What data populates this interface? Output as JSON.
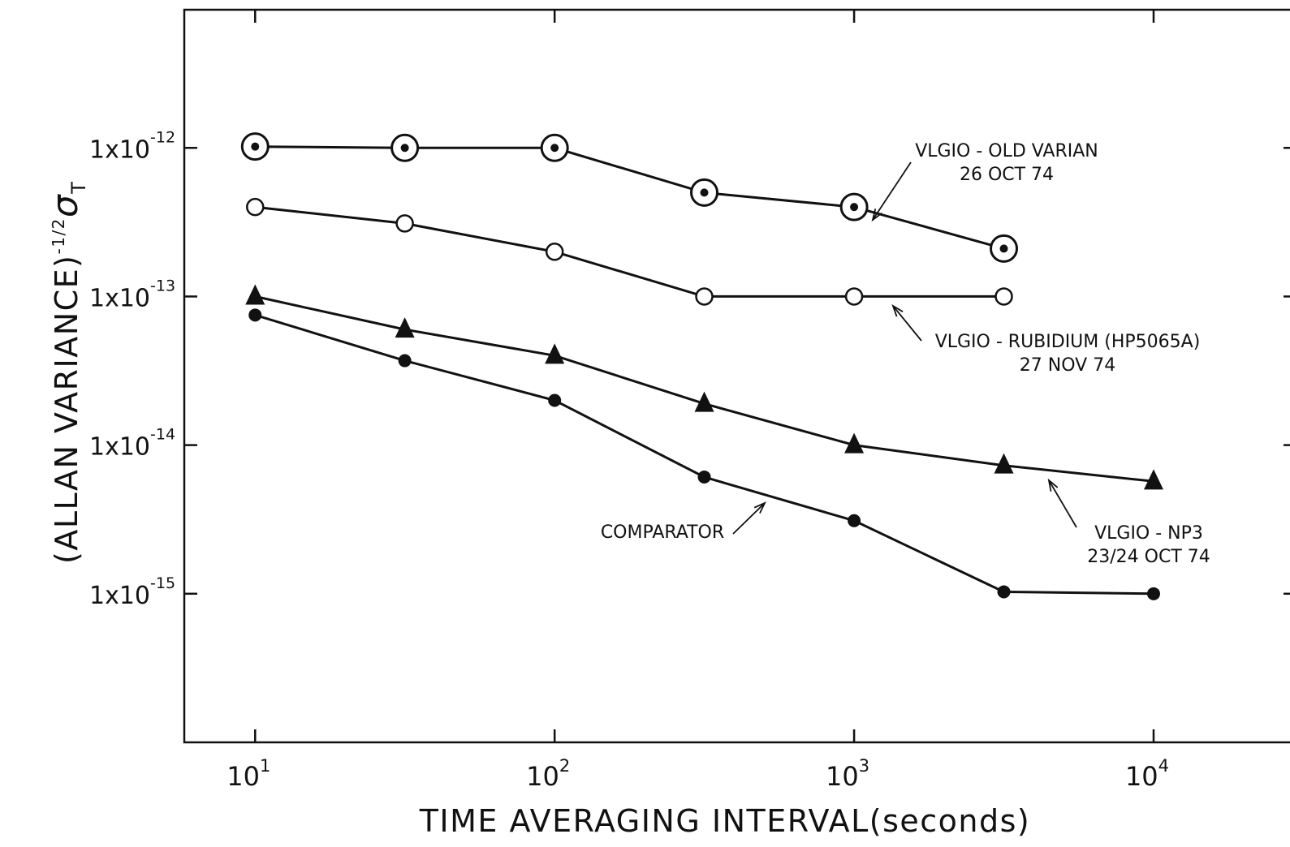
{
  "chart_data": {
    "type": "line",
    "title": "",
    "xlabel": "TIME AVERAGING INTERVAL(seconds)",
    "ylabel_main": "(ALLAN VARIANCE)",
    "ylabel_exp": "-1/2",
    "ylabel_symbol": "σ",
    "ylabel_sub": "T",
    "x_scale": "log",
    "y_scale": "log",
    "xlim": [
      5.8,
      30000
    ],
    "ylim": [
      1e-16,
      8.5e-12
    ],
    "x_ticks": [
      {
        "value": 10,
        "base": "10",
        "exp": "1"
      },
      {
        "value": 100,
        "base": "10",
        "exp": "2"
      },
      {
        "value": 1000,
        "base": "10",
        "exp": "3"
      },
      {
        "value": 10000,
        "base": "10",
        "exp": "4"
      }
    ],
    "y_ticks": [
      {
        "value": 1e-12,
        "base": "1x10",
        "exp": "-12"
      },
      {
        "value": 1e-13,
        "base": "1x10",
        "exp": "-13"
      },
      {
        "value": 1e-14,
        "base": "1x10",
        "exp": "-14"
      },
      {
        "value": 1e-15,
        "base": "1x10",
        "exp": "-15"
      }
    ],
    "grid": false,
    "series": [
      {
        "id": "old-varian",
        "name": "VLGIO - OLD VARIAN",
        "date": "26 OCT 74",
        "marker": "circle-dot",
        "x": [
          10,
          31.6,
          100,
          316,
          1000,
          3162
        ],
        "y": [
          1.02e-12,
          1e-12,
          1e-12,
          5e-13,
          4e-13,
          2.1e-13
        ]
      },
      {
        "id": "rubidium",
        "name": "VLGIO - RUBIDIUM (HP5065A)",
        "date": "27 NOV 74",
        "marker": "open-circle",
        "x": [
          10,
          31.6,
          100,
          316,
          1000,
          3162
        ],
        "y": [
          4e-13,
          3.1e-13,
          2e-13,
          1e-13,
          1e-13,
          1e-13
        ]
      },
      {
        "id": "np3",
        "name": "VLGIO - NP3",
        "date": "23/24 OCT 74",
        "marker": "triangle",
        "x": [
          10,
          31.6,
          100,
          316,
          1000,
          3162,
          10000
        ],
        "y": [
          1e-13,
          6e-14,
          4e-14,
          1.9e-14,
          1e-14,
          7.3e-15,
          5.7e-15
        ]
      },
      {
        "id": "comparator",
        "name": "COMPARATOR",
        "date": "",
        "marker": "filled-circle",
        "x": [
          10,
          31.6,
          100,
          316,
          1000,
          3162,
          10000
        ],
        "y": [
          7.5e-14,
          3.7e-14,
          2e-14,
          6.1e-15,
          3.1e-15,
          1.03e-15,
          1e-15
        ]
      }
    ]
  }
}
